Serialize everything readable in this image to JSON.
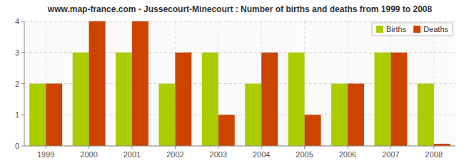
{
  "chart_data": {
    "type": "bar",
    "title": "www.map-france.com - Jussecourt-Minecourt : Number of births and deaths from 1999 to 2008",
    "categories": [
      "1999",
      "2000",
      "2001",
      "2002",
      "2003",
      "2004",
      "2005",
      "2006",
      "2007",
      "2008"
    ],
    "series": [
      {
        "name": "Births",
        "color": "#aacc00",
        "values": [
          2,
          3,
          3,
          2,
          3,
          2,
          3,
          2,
          3,
          2
        ]
      },
      {
        "name": "Deaths",
        "color": "#cc4400",
        "values": [
          2,
          4,
          4,
          3,
          1,
          3,
          1,
          2,
          3,
          0.07
        ]
      }
    ],
    "ylim": [
      0,
      4
    ],
    "yticks": [
      0,
      1,
      2,
      3,
      4
    ],
    "grid": true,
    "legend": "top-right"
  }
}
